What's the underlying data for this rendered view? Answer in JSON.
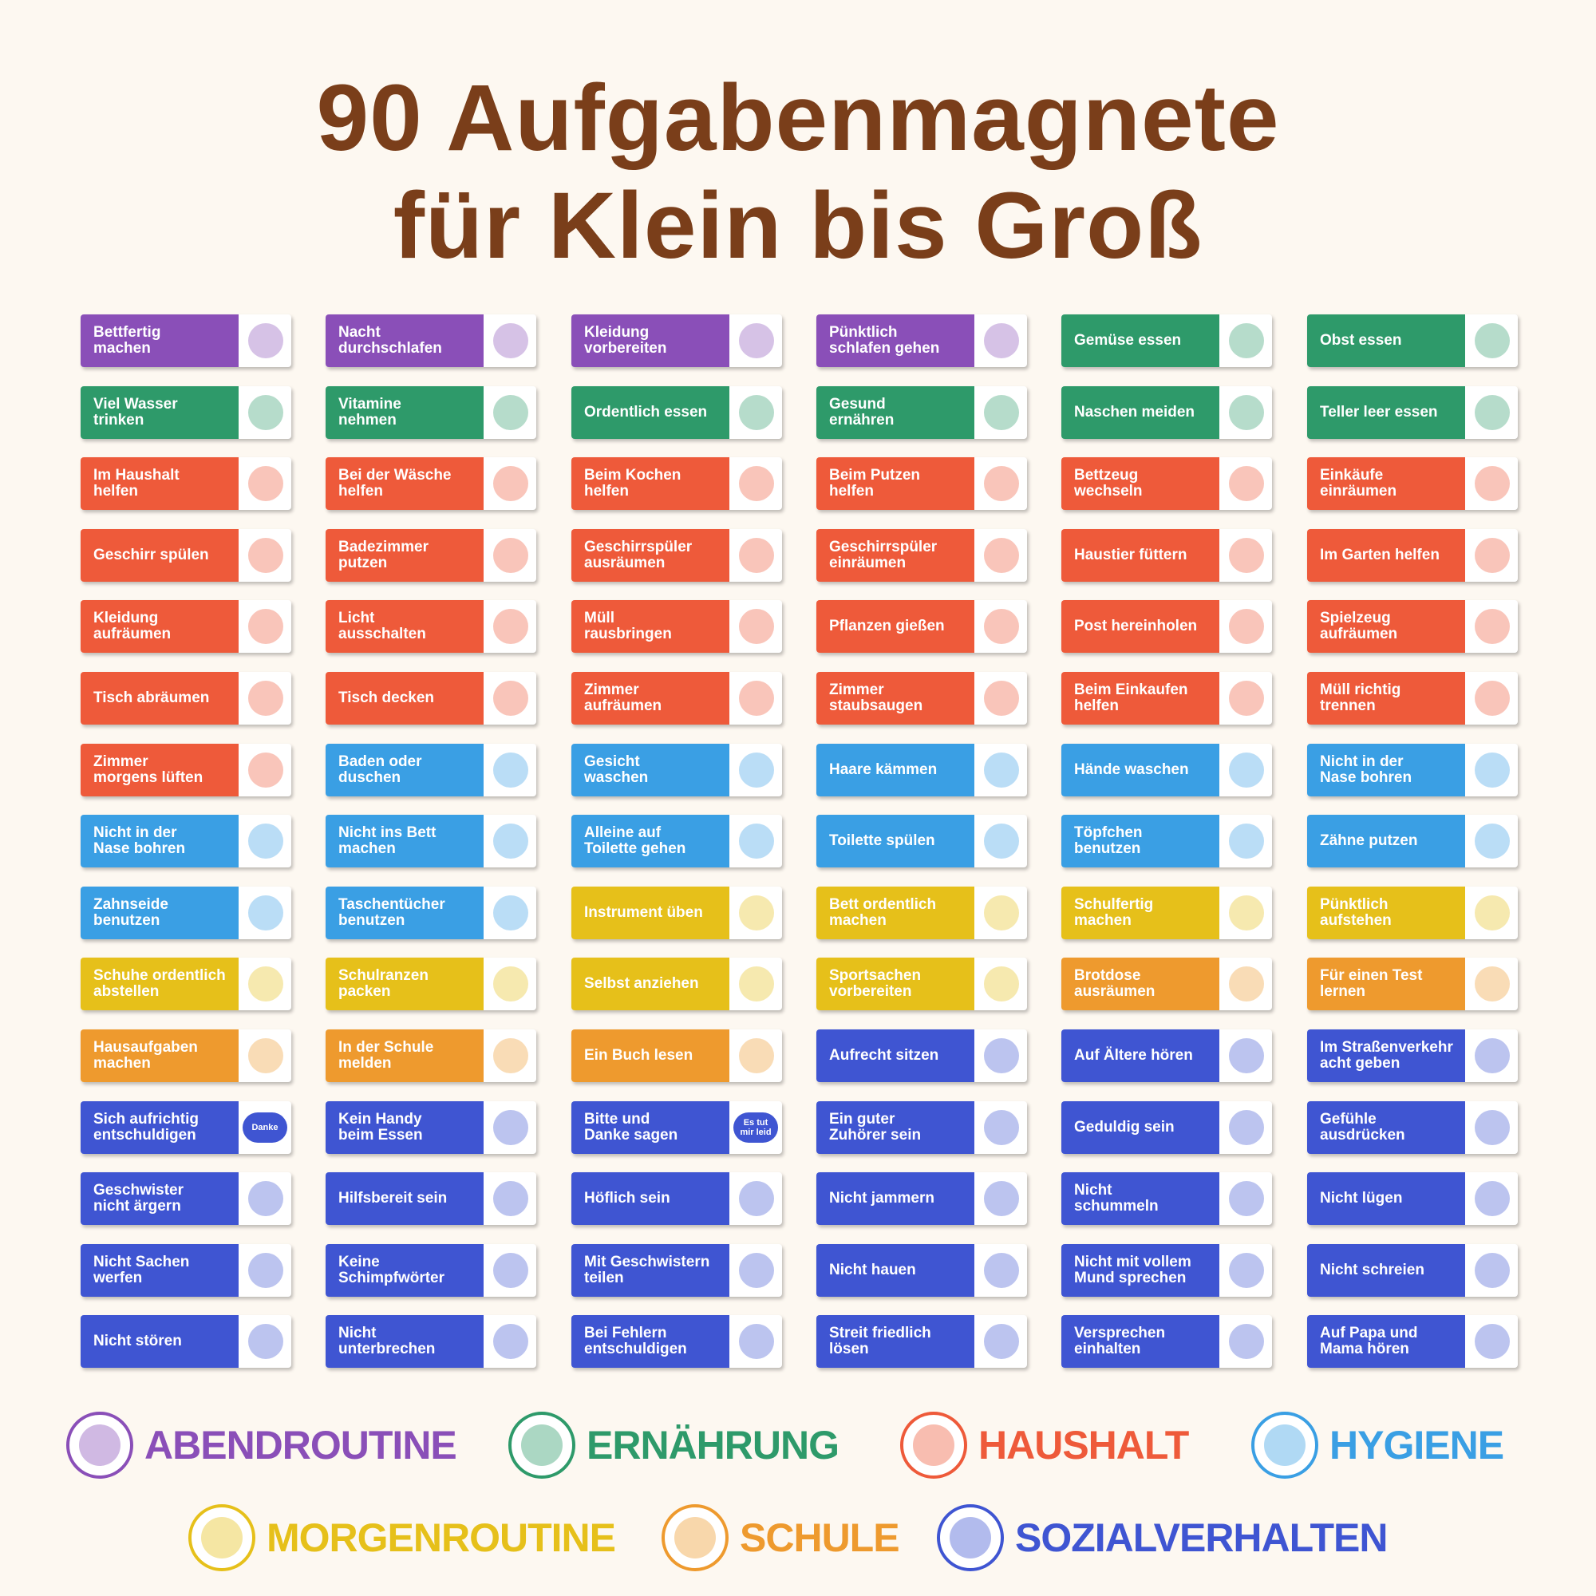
{
  "header": {
    "title_line1": "90 Aufgabenmagnete",
    "title_line2": "für Klein bis Groß"
  },
  "magnets": [
    {
      "label": "Bettfertig\nmachen",
      "color": "#8a4fb8"
    },
    {
      "label": "Nacht\ndurchschlafen",
      "color": "#8a4fb8"
    },
    {
      "label": "Kleidung\nvorbereiten",
      "color": "#8a4fb8"
    },
    {
      "label": "Pünktlich\nschlafen gehen",
      "color": "#8a4fb8"
    },
    {
      "label": "Gemüse essen",
      "color": "#2e9a6a"
    },
    {
      "label": "Obst essen",
      "color": "#2e9a6a"
    },
    {
      "label": "Viel Wasser\ntrinken",
      "color": "#2e9a6a"
    },
    {
      "label": "Vitamine\nnehmen",
      "color": "#2e9a6a"
    },
    {
      "label": "Ordentlich essen",
      "color": "#2e9a6a"
    },
    {
      "label": "Gesund\nernähren",
      "color": "#2e9a6a"
    },
    {
      "label": "Naschen meiden",
      "color": "#2e9a6a"
    },
    {
      "label": "Teller leer essen",
      "color": "#2e9a6a"
    },
    {
      "label": "Im Haushalt\nhelfen",
      "color": "#ee5a3a"
    },
    {
      "label": "Bei der Wäsche\nhelfen",
      "color": "#ee5a3a"
    },
    {
      "label": "Beim Kochen\nhelfen",
      "color": "#ee5a3a"
    },
    {
      "label": "Beim Putzen\nhelfen",
      "color": "#ee5a3a"
    },
    {
      "label": "Bettzeug\nwechseln",
      "color": "#ee5a3a"
    },
    {
      "label": "Einkäufe\neinräumen",
      "color": "#ee5a3a"
    },
    {
      "label": "Geschirr spülen",
      "color": "#ee5a3a"
    },
    {
      "label": "Badezimmer\nputzen",
      "color": "#ee5a3a"
    },
    {
      "label": "Geschirrspüler\nausräumen",
      "color": "#ee5a3a"
    },
    {
      "label": "Geschirrspüler\neinräumen",
      "color": "#ee5a3a"
    },
    {
      "label": "Haustier füttern",
      "color": "#ee5a3a"
    },
    {
      "label": "Im Garten helfen",
      "color": "#ee5a3a"
    },
    {
      "label": "Kleidung\naufräumen",
      "color": "#ee5a3a"
    },
    {
      "label": "Licht\nausschalten",
      "color": "#ee5a3a"
    },
    {
      "label": "Müll\nrausbringen",
      "color": "#ee5a3a"
    },
    {
      "label": "Pflanzen gießen",
      "color": "#ee5a3a"
    },
    {
      "label": "Post hereinholen",
      "color": "#ee5a3a"
    },
    {
      "label": "Spielzeug\naufräumen",
      "color": "#ee5a3a"
    },
    {
      "label": "Tisch abräumen",
      "color": "#ee5a3a"
    },
    {
      "label": "Tisch decken",
      "color": "#ee5a3a"
    },
    {
      "label": "Zimmer\naufräumen",
      "color": "#ee5a3a"
    },
    {
      "label": "Zimmer\nstaubsaugen",
      "color": "#ee5a3a"
    },
    {
      "label": "Beim Einkaufen\nhelfen",
      "color": "#ee5a3a"
    },
    {
      "label": "Müll richtig\ntrennen",
      "color": "#ee5a3a"
    },
    {
      "label": "Zimmer\nmorgens lüften",
      "color": "#ee5a3a"
    },
    {
      "label": "Baden oder\nduschen",
      "color": "#3a9fe4"
    },
    {
      "label": "Gesicht\nwaschen",
      "color": "#3a9fe4"
    },
    {
      "label": "Haare kämmen",
      "color": "#3a9fe4"
    },
    {
      "label": "Hände waschen",
      "color": "#3a9fe4"
    },
    {
      "label": "Nicht in der\nNase bohren",
      "color": "#3a9fe4"
    },
    {
      "label": "Nicht in der\nNase bohren",
      "color": "#3a9fe4"
    },
    {
      "label": "Nicht ins Bett\nmachen",
      "color": "#3a9fe4"
    },
    {
      "label": "Alleine auf\nToilette gehen",
      "color": "#3a9fe4"
    },
    {
      "label": "Toilette spülen",
      "color": "#3a9fe4"
    },
    {
      "label": "Töpfchen\nbenutzen",
      "color": "#3a9fe4"
    },
    {
      "label": "Zähne putzen",
      "color": "#3a9fe4"
    },
    {
      "label": "Zahnseide\nbenutzen",
      "color": "#3a9fe4"
    },
    {
      "label": "Taschentücher\nbenutzen",
      "color": "#3a9fe4"
    },
    {
      "label": "Instrument üben",
      "color": "#e6c01a"
    },
    {
      "label": "Bett ordentlich\nmachen",
      "color": "#e6c01a"
    },
    {
      "label": "Schulfertig\nmachen",
      "color": "#e6c01a"
    },
    {
      "label": "Pünktlich\naufstehen",
      "color": "#e6c01a"
    },
    {
      "label": "Schuhe ordentlich\nabstellen",
      "color": "#e6c01a"
    },
    {
      "label": "Schulranzen\npacken",
      "color": "#e6c01a"
    },
    {
      "label": "Selbst anziehen",
      "color": "#e6c01a"
    },
    {
      "label": "Sportsachen\nvorbereiten",
      "color": "#e6c01a"
    },
    {
      "label": "Brotdose\nausräumen",
      "color": "#ee9a2e"
    },
    {
      "label": "Für einen Test\nlernen",
      "color": "#ee9a2e"
    },
    {
      "label": "Hausaufgaben\nmachen",
      "color": "#ee9a2e"
    },
    {
      "label": "In der Schule\nmelden",
      "color": "#ee9a2e"
    },
    {
      "label": "Ein Buch lesen",
      "color": "#ee9a2e"
    },
    {
      "label": "Aufrecht sitzen",
      "color": "#3f55d2"
    },
    {
      "label": "Auf Ältere hören",
      "color": "#3f55d2"
    },
    {
      "label": "Im Straßenverkehr\nacht geben",
      "color": "#3f55d2"
    },
    {
      "label": "Sich aufrichtig\nentschuldigen",
      "color": "#3f55d2",
      "badge": "Danke"
    },
    {
      "label": "Kein Handy\nbeim Essen",
      "color": "#3f55d2"
    },
    {
      "label": "Bitte und\nDanke sagen",
      "color": "#3f55d2",
      "badge": "Es tut\nmir leid"
    },
    {
      "label": "Ein guter\nZuhörer sein",
      "color": "#3f55d2"
    },
    {
      "label": "Geduldig sein",
      "color": "#3f55d2"
    },
    {
      "label": "Gefühle\nausdrücken",
      "color": "#3f55d2"
    },
    {
      "label": "Geschwister\nnicht ärgern",
      "color": "#3f55d2"
    },
    {
      "label": "Hilfsbereit sein",
      "color": "#3f55d2"
    },
    {
      "label": "Höflich sein",
      "color": "#3f55d2"
    },
    {
      "label": "Nicht jammern",
      "color": "#3f55d2"
    },
    {
      "label": "Nicht\nschummeln",
      "color": "#3f55d2"
    },
    {
      "label": "Nicht lügen",
      "color": "#3f55d2"
    },
    {
      "label": "Nicht Sachen\nwerfen",
      "color": "#3f55d2"
    },
    {
      "label": "Keine\nSchimpfwörter",
      "color": "#3f55d2"
    },
    {
      "label": "Mit Geschwistern\nteilen",
      "color": "#3f55d2"
    },
    {
      "label": "Nicht hauen",
      "color": "#3f55d2"
    },
    {
      "label": "Nicht mit vollem\nMund sprechen",
      "color": "#3f55d2"
    },
    {
      "label": "Nicht schreien",
      "color": "#3f55d2"
    },
    {
      "label": "Nicht stören",
      "color": "#3f55d2"
    },
    {
      "label": "Nicht\nunterbrechen",
      "color": "#3f55d2"
    },
    {
      "label": "Bei Fehlern\nentschuldigen",
      "color": "#3f55d2"
    },
    {
      "label": "Streit friedlich\nlösen",
      "color": "#3f55d2"
    },
    {
      "label": "Versprechen\neinhalten",
      "color": "#3f55d2"
    },
    {
      "label": "Auf Papa und\nMama hören",
      "color": "#3f55d2"
    }
  ],
  "legend": [
    {
      "label": "ABENDROUTINE",
      "color": "#8a4fb8"
    },
    {
      "label": "ERNÄHRUNG",
      "color": "#2e9a6a"
    },
    {
      "label": "HAUSHALT",
      "color": "#ee5a3a"
    },
    {
      "label": "HYGIENE",
      "color": "#3a9fe4"
    },
    {
      "label": "MORGENROUTINE",
      "color": "#e6c01a"
    },
    {
      "label": "SCHULE",
      "color": "#ee9a2e"
    },
    {
      "label": "SOZIALVERHALTEN",
      "color": "#3f55d2"
    }
  ]
}
